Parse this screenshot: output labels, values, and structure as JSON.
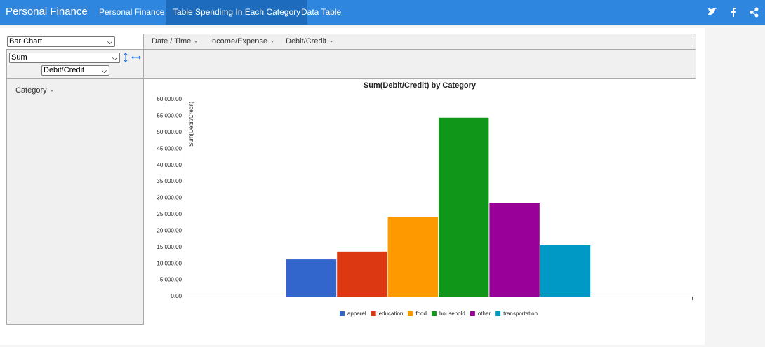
{
  "nav": {
    "brand": "Personal Finance",
    "links": [
      "Personal Finance",
      "Table Spendimg In Each Category",
      "Data Table"
    ]
  },
  "pivot": {
    "renderer": "Bar Chart",
    "aggregator": "Sum",
    "aggregator_field": "Debit/Credit",
    "column_fields": [
      "Date / Time",
      "Income/Expense",
      "Debit/Credit"
    ],
    "row_fields": [
      "Category"
    ]
  },
  "chart_data": {
    "type": "bar",
    "title": "Sum(Debit/Credit) by Category",
    "y_label": "Sum(Debit/Credit)",
    "categories": [
      null
    ],
    "series": [
      {
        "name": "apparel",
        "color": "#3366cc",
        "values": [
          11300
        ]
      },
      {
        "name": "education",
        "color": "#dc3912",
        "values": [
          13700
        ]
      },
      {
        "name": "food",
        "color": "#ff9900",
        "values": [
          24300
        ]
      },
      {
        "name": "household",
        "color": "#109618",
        "values": [
          54500
        ]
      },
      {
        "name": "other",
        "color": "#990099",
        "values": [
          28600
        ]
      },
      {
        "name": "transportation",
        "color": "#0099c6",
        "values": [
          15600
        ]
      }
    ],
    "ylim": [
      0,
      60000
    ],
    "yticks": [
      {
        "value": 0,
        "label": "0.00"
      },
      {
        "value": 5000,
        "label": "5,000.00"
      },
      {
        "value": 10000,
        "label": "10,000.00"
      },
      {
        "value": 15000,
        "label": "15,000.00"
      },
      {
        "value": 20000,
        "label": "20,000.00"
      },
      {
        "value": 25000,
        "label": "25,000.00"
      },
      {
        "value": 30000,
        "label": "30,000.00"
      },
      {
        "value": 35000,
        "label": "35,000.00"
      },
      {
        "value": 40000,
        "label": "40,000.00"
      },
      {
        "value": 45000,
        "label": "45,000.00"
      },
      {
        "value": 50000,
        "label": "50,000.00"
      },
      {
        "value": 55000,
        "label": "55,000.00"
      },
      {
        "value": 60000,
        "label": "60,000.00"
      }
    ],
    "grid": false,
    "legend": "bottom"
  }
}
